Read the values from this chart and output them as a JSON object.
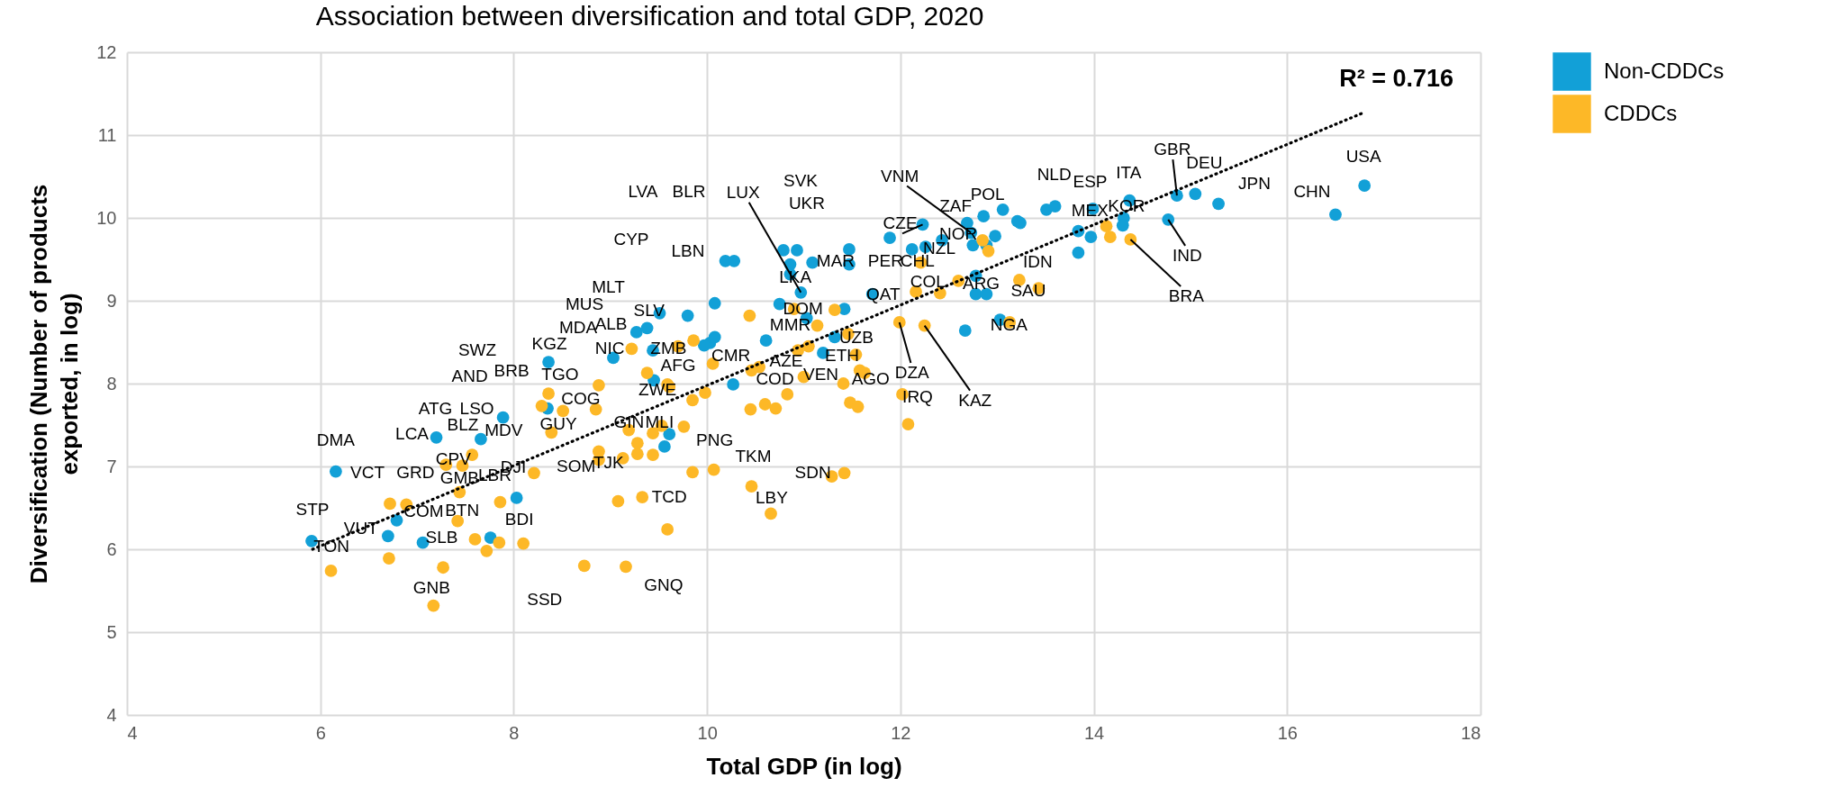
{
  "chart_data": {
    "type": "scatter",
    "title": "Association between diversification and total GDP, 2020",
    "xlabel": "Total GDP (in log)",
    "ylabel": "Diversification (Number of products\nexported, in log)",
    "xlim": [
      4,
      18
    ],
    "xticks": [
      4,
      6,
      8,
      10,
      12,
      14,
      16,
      18
    ],
    "ylim": [
      4,
      12
    ],
    "yticks": [
      4,
      5,
      6,
      7,
      8,
      9,
      10,
      11,
      12
    ],
    "grid": true,
    "legend": "right",
    "series": [
      {
        "name": "Non-CDDCs",
        "color": "#12a0d7",
        "marker": "circle",
        "x": [
          6.16,
          5.91,
          6.7,
          6.79,
          7.06,
          8.03,
          7.76,
          7.2,
          7.66,
          7.89,
          8.35,
          8.36,
          9.03,
          9.44,
          9.45,
          10.27,
          9.61,
          9.56,
          10.08,
          10.75,
          10.97,
          10.86,
          10.86,
          11.09,
          10.79,
          10.93,
          10.19,
          10.28,
          11.47,
          11.47,
          11.71,
          11.03,
          11.42,
          10.61,
          11.32,
          11.2,
          12.78,
          12.78,
          12.89,
          13.03,
          12.67,
          13.84,
          10.03,
          10.08,
          9.97,
          9.27,
          9.38,
          9.51,
          9.8,
          12.23,
          11.89,
          12.43,
          12.12,
          12.26,
          12.69,
          12.73,
          12.75,
          12.86,
          12.89,
          12.98,
          13.06,
          13.21,
          13.24,
          13.51,
          13.6,
          13.84,
          13.97,
          13.99,
          14.31,
          14.3,
          14.37,
          14.86,
          15.05,
          15.29,
          14.77,
          16.8,
          16.5
        ],
        "values": [
          6.94,
          6.1,
          6.16,
          6.35,
          6.08,
          6.62,
          6.14,
          7.35,
          7.33,
          7.59,
          7.7,
          8.26,
          8.31,
          8.4,
          8.04,
          7.99,
          7.39,
          7.24,
          8.97,
          8.96,
          9.1,
          9.32,
          9.44,
          9.46,
          9.61,
          9.61,
          9.48,
          9.48,
          9.44,
          9.62,
          9.08,
          8.79,
          8.9,
          8.52,
          8.56,
          8.37,
          9.3,
          9.08,
          9.08,
          8.77,
          8.64,
          9.58,
          8.49,
          8.56,
          8.46,
          8.62,
          8.67,
          8.85,
          8.82,
          9.92,
          9.76,
          9.73,
          9.62,
          9.65,
          9.94,
          9.82,
          9.67,
          10.02,
          9.67,
          9.78,
          10.1,
          9.96,
          9.94,
          10.1,
          10.14,
          9.84,
          9.77,
          10.11,
          10.0,
          9.91,
          10.21,
          10.27,
          10.29,
          10.17,
          9.98,
          10.39,
          10.04
        ]
      },
      {
        "name": "CDDCs",
        "color": "#fdb827",
        "marker": "circle",
        "x": [
          6.11,
          6.72,
          6.89,
          6.71,
          7.27,
          7.17,
          7.42,
          7.44,
          7.6,
          7.72,
          7.85,
          7.86,
          8.1,
          8.21,
          7.3,
          7.47,
          7.57,
          8.36,
          8.29,
          8.51,
          8.39,
          8.85,
          8.88,
          8.88,
          8.88,
          9.13,
          9.19,
          9.28,
          9.28,
          9.44,
          9.44,
          9.53,
          9.76,
          9.85,
          10.07,
          9.08,
          9.33,
          9.59,
          8.73,
          9.16,
          9.22,
          9.7,
          9.38,
          9.61,
          9.85,
          9.98,
          10.45,
          10.46,
          10.44,
          10.9,
          11.32,
          11.14,
          11.46,
          11.54,
          11.05,
          10.94,
          10.46,
          10.54,
          11.0,
          11.41,
          11.58,
          11.63,
          10.83,
          10.6,
          10.71,
          11.48,
          11.56,
          11.99,
          12.25,
          12.02,
          12.08,
          12.21,
          12.41,
          12.6,
          12.91,
          13.23,
          13.43,
          13.13,
          10.66,
          11.29,
          11.42,
          12.85,
          14.13,
          14.17,
          14.38,
          12.16,
          9.86,
          9.59,
          10.06
        ],
        "values": [
          5.74,
          6.55,
          6.54,
          5.89,
          5.78,
          5.32,
          6.34,
          6.69,
          6.12,
          5.98,
          6.08,
          6.57,
          6.07,
          6.92,
          7.02,
          7.01,
          7.14,
          7.88,
          7.73,
          7.67,
          7.41,
          7.69,
          7.98,
          7.18,
          7.08,
          7.1,
          7.44,
          7.28,
          7.15,
          7.14,
          7.4,
          7.49,
          7.48,
          6.93,
          6.96,
          6.58,
          6.63,
          6.24,
          5.8,
          5.79,
          8.42,
          8.45,
          8.13,
          7.96,
          7.8,
          7.89,
          7.69,
          6.76,
          8.82,
          8.9,
          8.89,
          8.7,
          8.6,
          8.35,
          8.45,
          8.4,
          8.16,
          8.2,
          8.08,
          8.0,
          8.16,
          8.13,
          7.87,
          7.75,
          7.7,
          7.77,
          7.72,
          8.74,
          8.7,
          7.87,
          7.51,
          9.46,
          9.09,
          9.24,
          9.6,
          9.25,
          9.15,
          8.74,
          6.43,
          6.88,
          6.92,
          9.73,
          9.9,
          9.77,
          9.74,
          9.11,
          8.52,
          7.99,
          8.24
        ]
      },
      {
        "type": "line",
        "color": "#000000",
        "line_style": "dotted",
        "x": [
          5.92,
          16.79
        ],
        "values": [
          6.0,
          11.27
        ]
      }
    ],
    "annotations": [
      "R² = 0.716",
      {
        "text": "DMA",
        "x": 6.16,
        "y": 6.94
      },
      {
        "text": "STP",
        "x": 5.91,
        "y": 6.1
      },
      {
        "text": "TON",
        "x": 5.91,
        "y": 6.1
      },
      {
        "text": "VUT",
        "x": 6.7,
        "y": 6.16
      },
      {
        "text": "VCT",
        "x": 6.72,
        "y": 6.55
      },
      {
        "text": "GRD",
        "x": 6.89,
        "y": 6.54
      },
      {
        "text": "COM",
        "x": 6.79,
        "y": 6.35
      },
      {
        "text": "SLB",
        "x": 7.06,
        "y": 6.08
      },
      {
        "text": "GNB",
        "x": 7.17,
        "y": 5.32
      },
      {
        "text": "LCA",
        "x": 7.2,
        "y": 7.35
      },
      {
        "text": "ATG",
        "x": 7.2,
        "y": 7.35
      },
      {
        "text": "LSO",
        "x": 7.89,
        "y": 7.59
      },
      {
        "text": "BLZ",
        "x": 7.66,
        "y": 7.33
      },
      {
        "text": "CPV",
        "x": 7.3,
        "y": 7.02
      },
      {
        "text": "GMB",
        "x": 7.44,
        "y": 6.69
      },
      {
        "text": "BTN",
        "x": 7.42,
        "y": 6.34
      },
      {
        "text": "LBR",
        "x": 7.86,
        "y": 6.57
      },
      {
        "text": "DJI",
        "x": 8.21,
        "y": 6.92
      },
      {
        "text": "BDI",
        "x": 8.03,
        "y": 6.62
      },
      {
        "text": "MDV",
        "x": 8.39,
        "y": 7.41
      },
      {
        "text": "AND",
        "x": 7.89,
        "y": 7.59
      },
      {
        "text": "BRB",
        "x": 8.36,
        "y": 7.88
      },
      "SWZ",
      {
        "text": "TGO",
        "x": 8.88,
        "y": 7.98
      },
      {
        "text": "KGZ",
        "x": 9.03,
        "y": 8.31
      },
      "MDA",
      {
        "text": "NIC",
        "x": 9.44,
        "y": 8.4
      },
      {
        "text": "ALB",
        "x": 9.38,
        "y": 8.67
      },
      "MUS",
      {
        "text": "MLT",
        "x": 9.51,
        "y": 8.85
      },
      {
        "text": "SLV",
        "x": 10.08,
        "y": 8.97
      },
      "CYP",
      "LVA",
      "BLR",
      {
        "text": "LUX",
        "x": 10.97,
        "y": 9.1
      },
      "SVK",
      {
        "text": "UKR",
        "x": 11.47,
        "y": 9.62
      },
      "LBN",
      {
        "text": "LKA",
        "x": 11.09,
        "y": 9.46
      },
      {
        "text": "MAR",
        "x": 11.47,
        "y": 9.44
      },
      {
        "text": "ZMB",
        "x": 10.03,
        "y": 8.49
      },
      {
        "text": "CMR",
        "x": 10.61,
        "y": 8.52
      },
      {
        "text": "AFG",
        "x": 9.98,
        "y": 7.89
      },
      {
        "text": "ZWE",
        "x": 9.85,
        "y": 7.8
      },
      "COG",
      {
        "text": "MLI",
        "x": 9.76,
        "y": 7.48
      },
      "GUY",
      {
        "text": "GIN",
        "x": 9.61,
        "y": 7.39
      },
      {
        "text": "SOM",
        "x": 9.13,
        "y": 7.1
      },
      {
        "text": "TJK",
        "x": 9.28,
        "y": 7.15
      },
      {
        "text": "TCD",
        "x": 9.33,
        "y": 6.63
      },
      {
        "text": "SSD",
        "x": 8.73,
        "y": 5.8
      },
      {
        "text": "GNQ",
        "x": 9.16,
        "y": 5.79
      },
      {
        "text": "PNG",
        "x": 10.07,
        "y": 6.96
      },
      {
        "text": "TKM",
        "x": 10.46,
        "y": 6.76
      },
      {
        "text": "LBY",
        "x": 10.66,
        "y": 6.43
      },
      {
        "text": "SDN",
        "x": 11.29,
        "y": 6.88
      },
      {
        "text": "COD",
        "x": 11.0,
        "y": 8.08
      },
      {
        "text": "AZE",
        "x": 10.94,
        "y": 8.4
      },
      {
        "text": "DOM",
        "x": 11.42,
        "y": 8.9
      },
      {
        "text": "MMR",
        "x": 11.14,
        "y": 8.7
      },
      {
        "text": "UZB",
        "x": 11.46,
        "y": 8.6
      },
      {
        "text": "ETH",
        "x": 11.2,
        "y": 8.37
      },
      {
        "text": "VEN",
        "x": 11.41,
        "y": 8.0
      },
      {
        "text": "AGO",
        "x": 11.58,
        "y": 8.16
      },
      {
        "text": "QAT",
        "x": 11.71,
        "y": 9.08
      },
      {
        "text": "PER",
        "x": 12.21,
        "y": 9.46
      },
      {
        "text": "CHL",
        "x": 12.12,
        "y": 9.62
      },
      {
        "text": "COL",
        "x": 12.89,
        "y": 9.67
      },
      {
        "text": "ARG",
        "x": 12.91,
        "y": 9.6
      },
      {
        "text": "SAU",
        "x": 13.23,
        "y": 9.25
      },
      {
        "text": "NGA",
        "x": 12.89,
        "y": 9.08
      },
      {
        "text": "DZA",
        "x": 11.99,
        "y": 8.74
      },
      {
        "text": "KAZ",
        "x": 12.25,
        "y": 8.7
      },
      {
        "text": "IRQ",
        "x": 12.02,
        "y": 7.87
      },
      {
        "text": "CZE",
        "x": 12.23,
        "y": 9.92
      },
      {
        "text": "NZL",
        "x": 12.43,
        "y": 9.73
      },
      {
        "text": "VNM",
        "x": 12.73,
        "y": 9.82
      },
      {
        "text": "ZAF",
        "x": 12.86,
        "y": 10.02
      },
      {
        "text": "NOR",
        "x": 12.98,
        "y": 9.78
      },
      {
        "text": "POL",
        "x": 13.06,
        "y": 10.1
      },
      {
        "text": "NLD",
        "x": 13.6,
        "y": 10.14
      },
      {
        "text": "ESP",
        "x": 13.99,
        "y": 10.11
      },
      {
        "text": "ITA",
        "x": 14.37,
        "y": 10.21
      },
      {
        "text": "KOR",
        "x": 14.31,
        "y": 10.0
      },
      {
        "text": "MEX",
        "x": 13.97,
        "y": 9.77
      },
      {
        "text": "IDN",
        "x": 13.84,
        "y": 9.58
      },
      {
        "text": "GBR",
        "x": 14.86,
        "y": 10.27
      },
      {
        "text": "DEU",
        "x": 15.05,
        "y": 10.29
      },
      {
        "text": "JPN",
        "x": 15.29,
        "y": 10.17
      },
      {
        "text": "USA",
        "x": 16.8,
        "y": 10.39
      },
      {
        "text": "CHN",
        "x": 16.5,
        "y": 10.04
      },
      {
        "text": "IND",
        "x": 14.77,
        "y": 9.98
      },
      {
        "text": "BRA",
        "x": 14.38,
        "y": 9.74
      }
    ]
  }
}
